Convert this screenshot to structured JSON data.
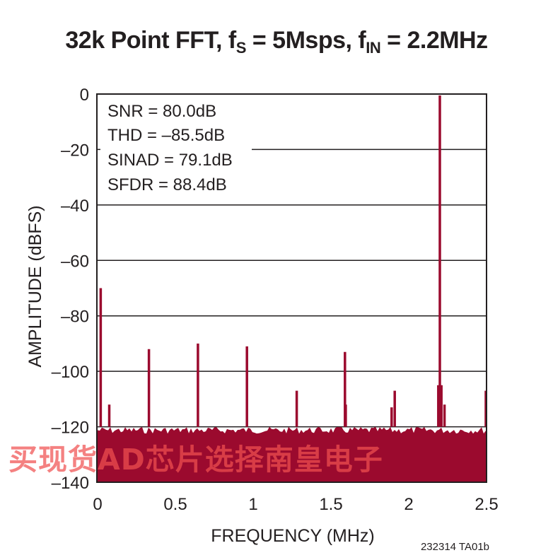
{
  "header": {
    "title_prefix": "32k Point FFT, f",
    "fs_sub": "S",
    "title_middle": " = 5Msps, f",
    "fin_sub": "IN",
    "title_suffix": " = 2.2MHz"
  },
  "stats": [
    "SNR = 80.0dB",
    "THD = –85.5dB",
    "SINAD = 79.1dB",
    "SFDR = 88.4dB"
  ],
  "figure_code": "232314 TA01b",
  "watermark": "买现货AD芯片选择南皇电子",
  "colors": {
    "trace": "#9b0a2e",
    "grid": "#231f20",
    "watermark": "#f05050"
  },
  "chart_data": {
    "type": "line",
    "title": "32k Point FFT, fS = 5Msps, fIN = 2.2MHz",
    "xlabel": "FREQUENCY (MHz)",
    "ylabel": "AMPLITUDE (dBFS)",
    "xlim": [
      0,
      2.5
    ],
    "ylim": [
      -140,
      0
    ],
    "x_ticks": [
      0,
      0.5,
      1,
      1.5,
      2,
      2.5
    ],
    "x_tick_labels": [
      "0",
      "0.5",
      "1",
      "1.5",
      "2",
      "2.5"
    ],
    "y_ticks": [
      0,
      -20,
      -40,
      -60,
      -80,
      -100,
      -120,
      -140
    ],
    "y_tick_labels": [
      "0",
      "–20",
      "–40",
      "–60",
      "–80",
      "–100",
      "–120",
      "–140"
    ],
    "grid": "horizontal",
    "noise_floor_dbfs": -120,
    "series": [
      {
        "peaks": [
          {
            "x": 0.02,
            "y": -70
          },
          {
            "x": 0.075,
            "y": -112
          },
          {
            "x": 0.33,
            "y": -92
          },
          {
            "x": 0.645,
            "y": -90
          },
          {
            "x": 0.96,
            "y": -91
          },
          {
            "x": 1.28,
            "y": -107
          },
          {
            "x": 1.59,
            "y": -93
          },
          {
            "x": 1.595,
            "y": -112
          },
          {
            "x": 1.91,
            "y": -107
          },
          {
            "x": 1.89,
            "y": -113
          },
          {
            "x": 2.19,
            "y": -105
          },
          {
            "x": 2.2,
            "y": -0.5
          },
          {
            "x": 2.21,
            "y": -105
          },
          {
            "x": 2.23,
            "y": -112
          },
          {
            "x": 2.5,
            "y": -107
          }
        ]
      }
    ]
  }
}
